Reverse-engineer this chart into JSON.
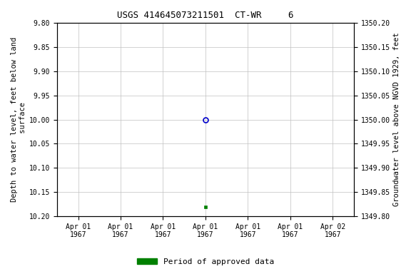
{
  "title": "USGS 414645073211501  CT-WR     6",
  "ylabel_left": "Depth to water level, feet below land\n surface",
  "ylabel_right": "Groundwater level above NGVD 1929, feet",
  "ylim_left": [
    9.8,
    10.2
  ],
  "ylim_right": [
    1349.8,
    1350.2
  ],
  "y_ticks_left": [
    9.8,
    9.85,
    9.9,
    9.95,
    10.0,
    10.05,
    10.1,
    10.15,
    10.2
  ],
  "y_ticks_right": [
    1349.8,
    1349.85,
    1349.9,
    1349.95,
    1350.0,
    1350.05,
    1350.1,
    1350.15,
    1350.2
  ],
  "data_point_open_x": 3.0,
  "data_point_open_y": 10.0,
  "data_point_filled_x": 3.0,
  "data_point_filled_y": 10.18,
  "x_ticks": [
    0,
    1,
    2,
    3,
    4,
    5,
    6
  ],
  "x_tick_labels": [
    "Apr 01\n1967",
    "Apr 01\n1967",
    "Apr 01\n1967",
    "Apr 01\n1967",
    "Apr 01\n1967",
    "Apr 01\n1967",
    "Apr 02\n1967"
  ],
  "xlim": [
    -0.5,
    6.5
  ],
  "open_marker_color": "#0000cc",
  "filled_marker_color": "#008000",
  "legend_color": "#008000",
  "legend_label": "Period of approved data",
  "background_color": "#ffffff",
  "grid_color": "#c0c0c0",
  "title_fontsize": 9,
  "axis_label_fontsize": 7.5,
  "tick_fontsize": 7,
  "font_family": "monospace"
}
